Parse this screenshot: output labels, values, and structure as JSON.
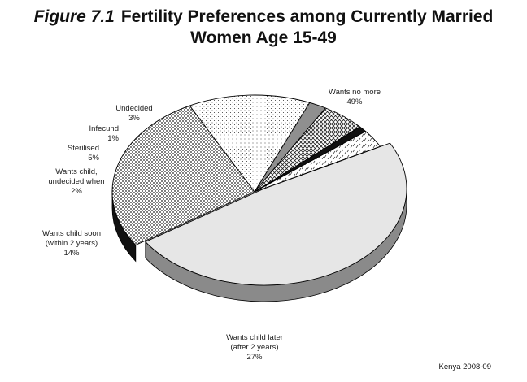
{
  "title": {
    "figure_label": "Figure 7.1",
    "line1": "Fertility Preferences among Currently Married",
    "line2": "Women Age 15-49"
  },
  "source": "Kenya 2008-09",
  "chart_data": {
    "type": "pie",
    "title": "Figure 7.1 Fertility Preferences among Currently Married Women Age 15-49",
    "unit": "%",
    "slices": [
      {
        "label": "Wants no more",
        "value": 49,
        "fill": "light-gray"
      },
      {
        "label": "Wants child later (after 2 years)",
        "value": 27,
        "fill": "dense-dots"
      },
      {
        "label": "Wants child soon (within 2 years)",
        "value": 14,
        "fill": "sparse-dots"
      },
      {
        "label": "Wants child, undecided when",
        "value": 2,
        "fill": "dark-gray"
      },
      {
        "label": "Sterilised",
        "value": 5,
        "fill": "crosshatch"
      },
      {
        "label": "Infecund",
        "value": 1,
        "fill": "black"
      },
      {
        "label": "Undecided",
        "value": 3,
        "fill": "dashed"
      }
    ],
    "labels": [
      {
        "lines": [
          "Wants no more",
          "49%"
        ]
      },
      {
        "lines": [
          "Wants child later",
          "(after 2 years)",
          "27%"
        ]
      },
      {
        "lines": [
          "Wants child soon",
          "(within 2 years)",
          "14%"
        ]
      },
      {
        "lines": [
          "Wants child,",
          "undecided when",
          "2%"
        ]
      },
      {
        "lines": [
          "Sterilised",
          "5%"
        ]
      },
      {
        "lines": [
          "Infecund",
          "1%"
        ]
      },
      {
        "lines": [
          "Undecided",
          "3%"
        ]
      }
    ],
    "style": "3d-exploded"
  }
}
